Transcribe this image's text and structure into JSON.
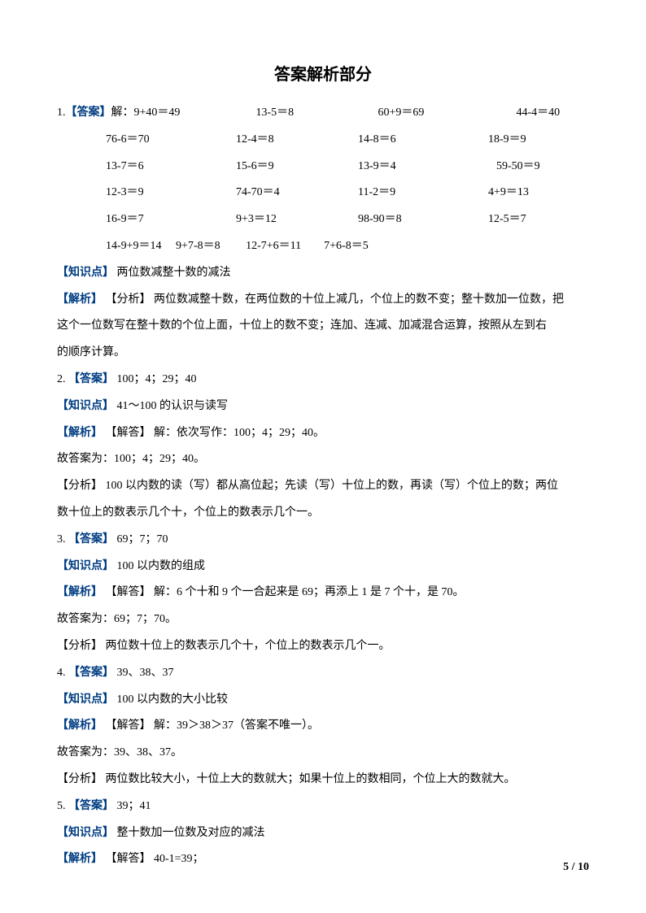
{
  "title": "答案解析部分",
  "q1": {
    "num": "1.",
    "answer_tag": "【答案】",
    "prefix": "解：",
    "rows": [
      [
        "9+40＝49",
        "13-5＝8",
        "60+9＝69",
        "44-4＝40"
      ],
      [
        "76-6＝70",
        "12-4＝8",
        "14-8＝6",
        "18-9＝9"
      ],
      [
        "13-7＝6",
        "15-6＝9",
        "13-9＝4",
        "59-50＝9"
      ],
      [
        "12-3＝9",
        "74-70＝4",
        "11-2＝9",
        "4+9＝13"
      ],
      [
        "16-9＝7",
        "9+3＝12",
        "98-90＝8",
        "12-5＝7"
      ]
    ],
    "row6_text": "14-9+9＝14     9+7-8＝8         12-7+6＝11        7+6-8＝5",
    "knowledge_tag": "【知识点】",
    "knowledge": "两位数减整十数的减法",
    "analysis_tag": "【解析】",
    "analysis_sub": "【分析】",
    "analysis_text1": "两位数减整十数，在两位数的十位上减几，个位上的数不变；整十数加一位数，把",
    "analysis_text2": "这个一位数写在整十数的个位上面，十位上的数不变；连加、连减、加减混合运算，按照从左到右",
    "analysis_text3": "的顺序计算。"
  },
  "q2": {
    "num": "2.",
    "answer_tag": "【答案】",
    "answer": "100；4；29；40",
    "knowledge_tag": "【知识点】",
    "knowledge": "41～100 的认识与读写",
    "analysis_tag": "【解析】",
    "jieda_tag": "【解答】",
    "jieda": "解：依次写作：100；4；29；40。",
    "guanswer": "故答案为：100；4；29；40。",
    "fenxi_tag": "【分析】",
    "fenxi1": "100 以内数的读（写）都从高位起；先读（写）十位上的数，再读（写）个位上的数；两位",
    "fenxi2": "数十位上的数表示几个十，个位上的数表示几个一。"
  },
  "q3": {
    "num": "3.",
    "answer_tag": "【答案】",
    "answer": "69；7；70",
    "knowledge_tag": "【知识点】",
    "knowledge": "100 以内数的组成",
    "analysis_tag": "【解析】",
    "jieda_tag": "【解答】",
    "jieda": "解：6 个十和 9 个一合起来是 69；再添上 1 是  7 个十，是 70。",
    "guanswer": "故答案为：69；7；70。",
    "fenxi_tag": "【分析】",
    "fenxi": "两位数十位上的数表示几个十，个位上的数表示几个一。"
  },
  "q4": {
    "num": "4.",
    "answer_tag": "【答案】",
    "answer": "39、38、37",
    "knowledge_tag": "【知识点】",
    "knowledge": "100 以内数的大小比较",
    "analysis_tag": "【解析】",
    "jieda_tag": "【解答】",
    "jieda": "解：39＞38＞37（答案不唯一）。",
    "guanswer": "故答案为：39、38、37。",
    "fenxi_tag": "【分析】",
    "fenxi": "两位数比较大小，十位上大的数就大；如果十位上的数相同，个位上大的数就大。"
  },
  "q5": {
    "num": "5.",
    "answer_tag": "【答案】",
    "answer": "39；41",
    "knowledge_tag": "【知识点】",
    "knowledge": "整十数加一位数及对应的减法",
    "analysis_tag": "【解析】",
    "jieda_tag": "【解答】",
    "jieda": "40-1=39；"
  },
  "footer": "5  /  10",
  "colors": {
    "tag_color": "#003d82",
    "text_color": "#000000",
    "background": "#ffffff"
  }
}
